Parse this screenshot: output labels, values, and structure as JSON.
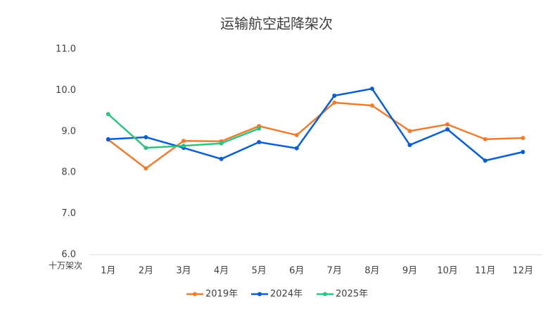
{
  "chart_data": {
    "type": "line",
    "title": "运输航空起降架次",
    "y_unit": "十万架次",
    "categories": [
      "1月",
      "2月",
      "3月",
      "4月",
      "5月",
      "6月",
      "7月",
      "8月",
      "9月",
      "10月",
      "11月",
      "12月"
    ],
    "series": [
      {
        "name": "2019年",
        "color": "#ed7d31",
        "values": [
          8.8,
          8.1,
          8.77,
          8.76,
          9.13,
          8.91,
          9.7,
          9.63,
          9.01,
          9.17,
          8.81,
          8.84
        ]
      },
      {
        "name": "2024年",
        "color": "#0a5fd0",
        "values": [
          8.81,
          8.86,
          8.6,
          8.33,
          8.74,
          8.59,
          9.87,
          10.04,
          8.67,
          9.05,
          8.29,
          8.5
        ]
      },
      {
        "name": "2025年",
        "color": "#2ec383",
        "values": [
          9.42,
          8.6,
          8.65,
          8.71,
          9.07,
          null,
          null,
          null,
          null,
          null,
          null,
          null
        ]
      }
    ],
    "ylim": [
      6,
      11
    ],
    "yticks": [
      {
        "value": 6,
        "label": "6.0"
      },
      {
        "value": 7,
        "label": "7.0"
      },
      {
        "value": 8,
        "label": "8.0"
      },
      {
        "value": 9,
        "label": "9.0"
      },
      {
        "value": 10,
        "label": "10.0"
      },
      {
        "value": 11,
        "label": "11.0"
      }
    ],
    "grid": false,
    "legend": "bottom"
  }
}
